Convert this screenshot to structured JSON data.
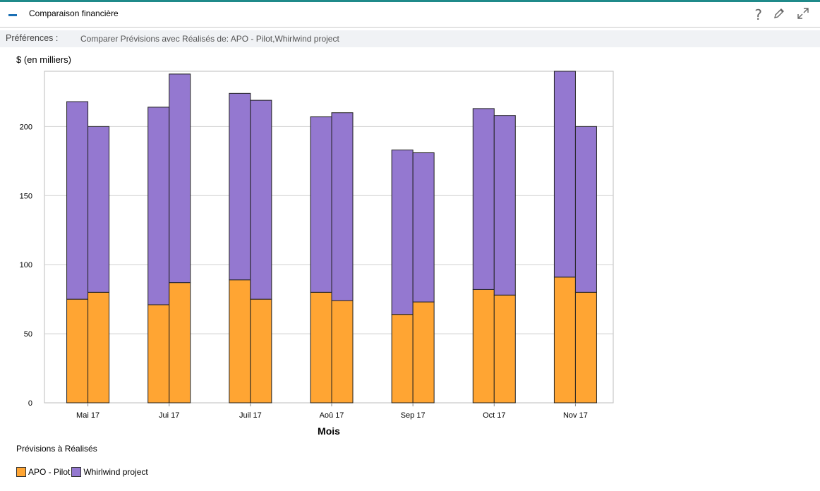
{
  "portlet": {
    "title": "Comparaison financière",
    "icons": [
      "collapse-icon",
      "help-icon",
      "edit-pencil-icon",
      "expand-icon"
    ],
    "accent_color": "#1f8a8a",
    "help_glyph": "?",
    "edit_glyph": "✎"
  },
  "preferences": {
    "label": "Préférences :",
    "value": "Comparer Prévisions avec Réalisés de: APO - Pilot,Whirlwind project"
  },
  "chart_data": {
    "type": "bar",
    "stacked": true,
    "grouped_pairs": [
      "Prévisions",
      "Réalisés"
    ],
    "ylabel": "$ (en milliers)",
    "xlabel": "Mois",
    "categories": [
      "Mai 17",
      "Jui 17",
      "Juil 17",
      "Aoû 17",
      "Sep 17",
      "Oct 17",
      "Nov 17"
    ],
    "ylim": [
      0,
      240
    ],
    "yticks": [
      0,
      50,
      100,
      150,
      200
    ],
    "grid": true,
    "series": [
      {
        "name": "APO - Pilot",
        "color": "#ffa533",
        "forecast": [
          75,
          71,
          89,
          80,
          64,
          82,
          91
        ],
        "actual": [
          80,
          87,
          75,
          74,
          73,
          78,
          80
        ]
      },
      {
        "name": "Whirlwind project",
        "color": "#9478d0",
        "forecast": [
          143,
          143,
          135,
          127,
          119,
          131,
          149
        ],
        "actual": [
          120,
          151,
          144,
          136,
          108,
          130,
          120
        ]
      }
    ],
    "legend_title": "Prévisions à Réalisés",
    "legend_position": "bottom-left"
  }
}
